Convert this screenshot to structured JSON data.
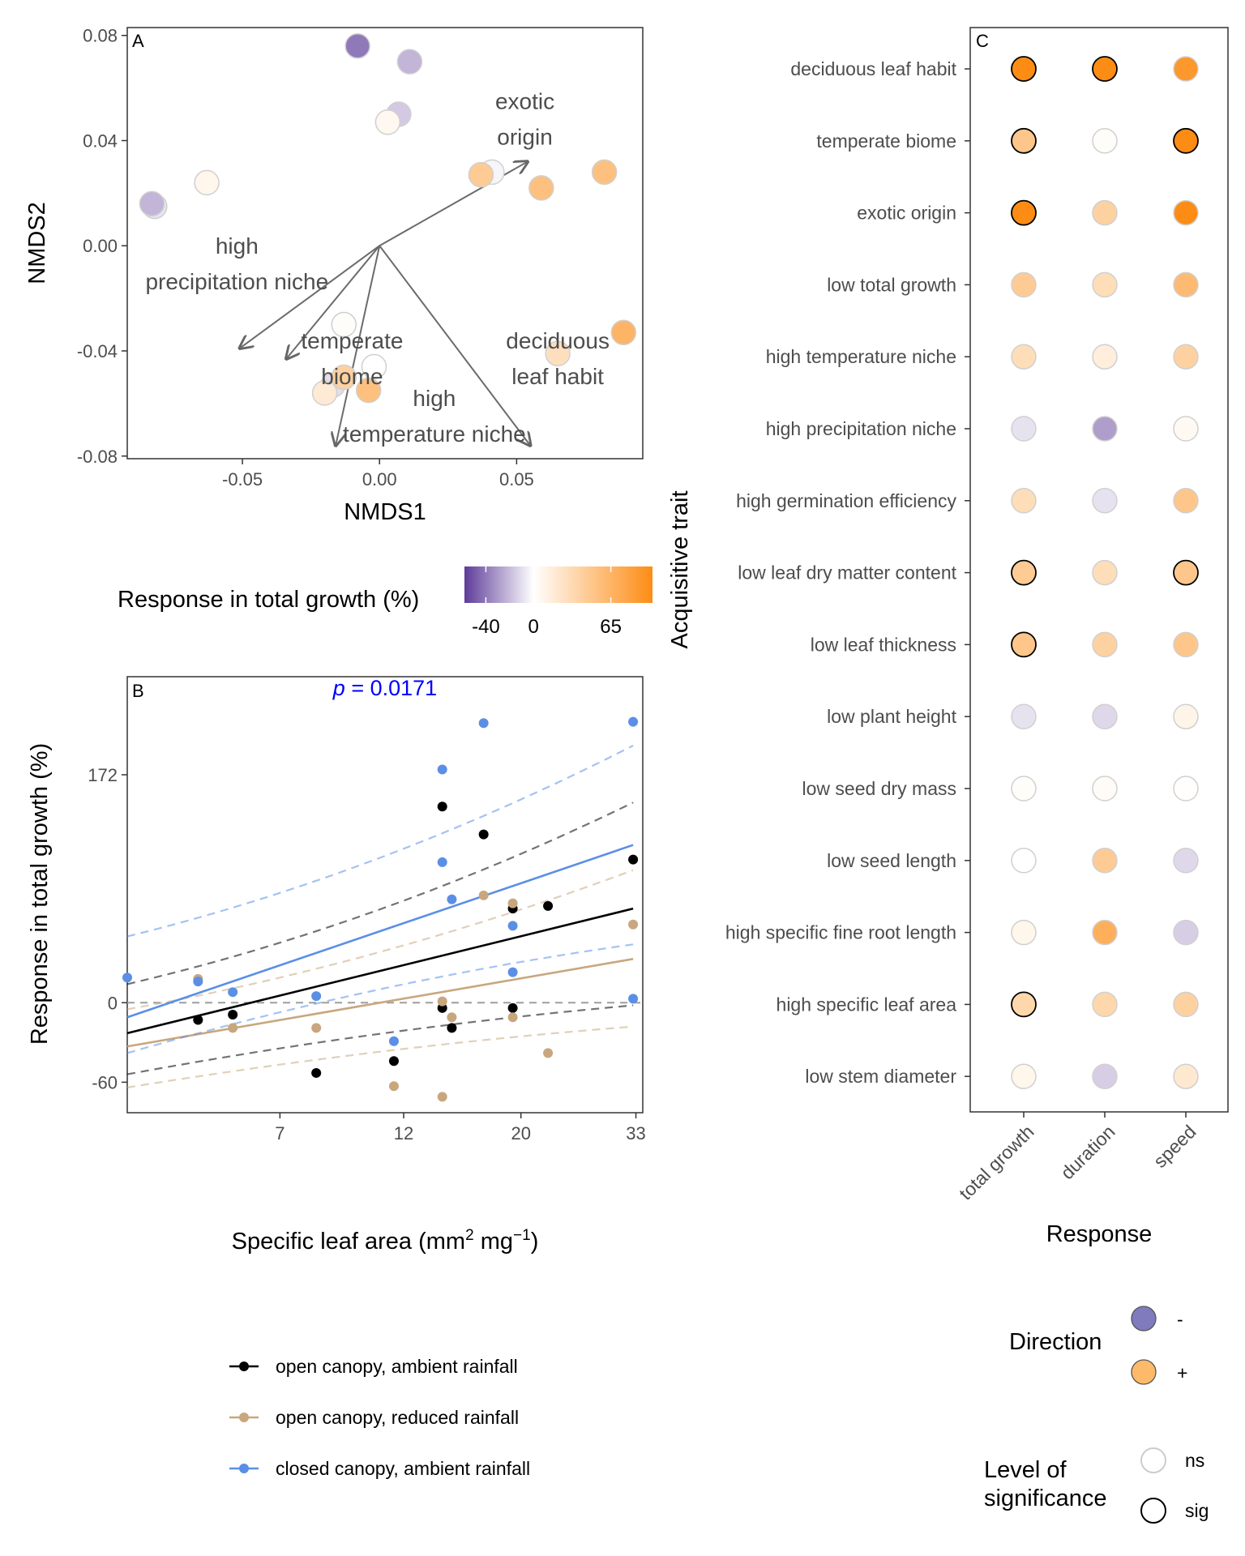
{
  "colors": {
    "negative": "#5e3c99",
    "neutral": "#ffffff",
    "positive": "#fd8c14",
    "line_black": "#000000",
    "line_tan": "#c8a77e",
    "line_blue": "#5b8fe6",
    "pvalue": "#0000ff"
  },
  "chart_data": [
    {
      "panel": "A",
      "type": "scatter",
      "panel_label": "A",
      "xlabel": "NMDS1",
      "ylabel": "NMDS2",
      "xlim": [
        -0.092,
        0.096
      ],
      "ylim": [
        -0.081,
        0.083
      ],
      "xticks": [
        -0.05,
        0.0,
        0.05
      ],
      "xtick_labels": [
        "-0.05",
        "0.00",
        "0.05"
      ],
      "yticks": [
        -0.08,
        -0.04,
        0.0,
        0.04,
        0.08
      ],
      "ytick_labels": [
        "-0.08",
        "-0.04",
        "0.00",
        "0.04",
        "0.08"
      ],
      "grid": false,
      "points": [
        {
          "x": -0.008,
          "y": 0.076,
          "response": -40
        },
        {
          "x": 0.011,
          "y": 0.07,
          "response": -22
        },
        {
          "x": 0.007,
          "y": 0.05,
          "response": -16
        },
        {
          "x": 0.003,
          "y": 0.047,
          "response": 6
        },
        {
          "x": 0.041,
          "y": 0.028,
          "response": -3
        },
        {
          "x": 0.037,
          "y": 0.027,
          "response": 45
        },
        {
          "x": 0.059,
          "y": 0.022,
          "response": 55
        },
        {
          "x": 0.082,
          "y": 0.028,
          "response": 55
        },
        {
          "x": -0.082,
          "y": 0.015,
          "response": -8
        },
        {
          "x": -0.083,
          "y": 0.016,
          "response": -22
        },
        {
          "x": -0.063,
          "y": 0.024,
          "response": 8
        },
        {
          "x": -0.013,
          "y": -0.03,
          "response": 2
        },
        {
          "x": -0.002,
          "y": -0.046,
          "response": 0
        },
        {
          "x": 0.065,
          "y": -0.041,
          "response": 28
        },
        {
          "x": 0.089,
          "y": -0.033,
          "response": 65
        },
        {
          "x": -0.017,
          "y": -0.053,
          "response": -10
        },
        {
          "x": -0.013,
          "y": -0.05,
          "response": 40
        },
        {
          "x": -0.02,
          "y": -0.056,
          "response": 18
        },
        {
          "x": -0.004,
          "y": -0.055,
          "response": 55
        }
      ],
      "vectors": [
        {
          "trait": "exotic origin",
          "lines": [
            "exotic",
            "origin"
          ],
          "x": 0.054,
          "y": 0.032,
          "label_x": 0.053,
          "label_y": 0.052
        },
        {
          "trait": "high precipitation niche",
          "lines": [
            "high",
            "precipitation niche"
          ],
          "x": -0.051,
          "y": -0.039,
          "label_x": -0.052,
          "label_y": -0.003
        },
        {
          "trait": "temperate biome",
          "lines": [
            "temperate",
            "biome"
          ],
          "x": -0.034,
          "y": -0.043,
          "label_x": -0.01,
          "label_y": -0.039
        },
        {
          "trait": "high temperature niche",
          "lines": [
            "high",
            "temperature niche"
          ],
          "x": -0.016,
          "y": -0.076,
          "label_x": 0.02,
          "label_y": -0.061
        },
        {
          "trait": "deciduous leaf habit",
          "lines": [
            "deciduous",
            "leaf habit"
          ],
          "x": 0.055,
          "y": -0.076,
          "label_x": 0.065,
          "label_y": -0.039
        }
      ]
    },
    {
      "panel": "legend",
      "type": "colorbar",
      "title": "Response in total growth (%)",
      "ticks": [
        -40,
        0,
        65
      ],
      "tick_labels": [
        "-40",
        "0",
        "65"
      ],
      "range": [
        -58,
        100
      ]
    },
    {
      "panel": "B",
      "type": "scatter",
      "panel_label": "B",
      "annotation": "p = 0.0171",
      "annotation_italic": "p",
      "annotation_rest": " = 0.0171",
      "xlabel": "Specific leaf area (mm² mg⁻¹)",
      "xlabel_parts": [
        "Specific leaf area (mm",
        "2",
        " mg",
        "−1",
        ")"
      ],
      "ylabel": "Response in total growth (%)",
      "x_scale": "log",
      "xlim": [
        3.6,
        34
      ],
      "ylim": [
        -83,
        246
      ],
      "x_is_shown_as": "value^(1/4) on log-ish axis",
      "xticks": [
        7,
        12,
        20,
        33
      ],
      "xtick_labels": [
        "7",
        "12",
        "20",
        "33"
      ],
      "yticks": [
        -60,
        0,
        172
      ],
      "ytick_labels": [
        "-60",
        "0",
        "172"
      ],
      "hline": 0,
      "grid": false,
      "legend_position": "bottom",
      "series": [
        {
          "name": "open canopy, ambient rainfall",
          "color_key": "line_black",
          "points": [
            [
              4.9,
              -13
            ],
            [
              5.7,
              -9
            ],
            [
              8.2,
              -53
            ],
            [
              11.5,
              -44
            ],
            [
              14.2,
              148
            ],
            [
              17.0,
              127
            ],
            [
              14.2,
              -4
            ],
            [
              14.8,
              -19
            ],
            [
              19.3,
              71
            ],
            [
              19.3,
              -4
            ],
            [
              22.5,
              73
            ],
            [
              32.6,
              108
            ]
          ],
          "fit": [
            [
              3.6,
              -23
            ],
            [
              32.6,
              71
            ]
          ],
          "ci_upper": [
            [
              3.6,
              14
            ],
            [
              32.6,
              151
            ]
          ],
          "ci_lower": [
            [
              3.6,
              -54
            ],
            [
              32.6,
              -2
            ]
          ]
        },
        {
          "name": "open canopy, reduced rainfall",
          "color_key": "line_tan",
          "points": [
            [
              4.9,
              18
            ],
            [
              5.7,
              -19
            ],
            [
              8.2,
              -19
            ],
            [
              11.5,
              -63
            ],
            [
              14.2,
              1
            ],
            [
              14.8,
              -11
            ],
            [
              17.0,
              81
            ],
            [
              19.3,
              75
            ],
            [
              19.3,
              -11
            ],
            [
              22.5,
              -38
            ],
            [
              14.2,
              -71
            ],
            [
              32.6,
              59
            ]
          ],
          "fit": [
            [
              3.6,
              -33
            ],
            [
              32.6,
              33
            ]
          ],
          "ci_upper": [
            [
              3.6,
              -5
            ],
            [
              32.6,
              100
            ]
          ],
          "ci_lower": [
            [
              3.6,
              -64
            ],
            [
              32.6,
              -18
            ]
          ]
        },
        {
          "name": "closed canopy, ambient rainfall",
          "color_key": "line_blue",
          "points": [
            [
              3.6,
              19
            ],
            [
              4.9,
              16
            ],
            [
              5.7,
              8
            ],
            [
              8.2,
              5
            ],
            [
              11.5,
              -29
            ],
            [
              14.2,
              176
            ],
            [
              14.2,
              106
            ],
            [
              14.8,
              78
            ],
            [
              17.0,
              211
            ],
            [
              19.3,
              58
            ],
            [
              19.3,
              23
            ],
            [
              32.6,
              212
            ],
            [
              32.6,
              3
            ]
          ],
          "fit": [
            [
              3.6,
              -11
            ],
            [
              32.6,
              119
            ]
          ],
          "ci_upper": [
            [
              3.6,
              50
            ],
            [
              32.6,
              194
            ]
          ],
          "ci_lower": [
            [
              3.6,
              -38
            ],
            [
              32.6,
              44
            ]
          ]
        }
      ]
    },
    {
      "panel": "C",
      "type": "heatmap",
      "panel_label": "C",
      "xlabel": "Response",
      "ylabel": "Acquisitive trait",
      "x_categories": [
        "total growth",
        "duration",
        "speed"
      ],
      "y_categories": [
        "deciduous leaf habit",
        "temperate biome",
        "exotic origin",
        "low total growth",
        "high temperature niche",
        "high precipitation niche",
        "high germination efficiency",
        "low leaf dry matter content",
        "low leaf thickness",
        "low plant height",
        "low seed dry mass",
        "low seed length",
        "high specific fine root length",
        "high specific leaf area",
        "low stem diameter"
      ],
      "values": [
        [
          1.0,
          1.0,
          0.9
        ],
        [
          0.5,
          0.02,
          1.0
        ],
        [
          1.0,
          0.4,
          1.0
        ],
        [
          0.45,
          0.3,
          0.6
        ],
        [
          0.3,
          0.15,
          0.4
        ],
        [
          -0.15,
          -0.5,
          0.05
        ],
        [
          0.3,
          -0.15,
          0.5
        ],
        [
          0.45,
          0.3,
          0.5
        ],
        [
          0.5,
          0.4,
          0.5
        ],
        [
          -0.15,
          -0.2,
          0.1
        ],
        [
          0.02,
          0.03,
          0.01
        ],
        [
          0.0,
          0.45,
          -0.2
        ],
        [
          0.08,
          0.7,
          -0.25
        ],
        [
          0.35,
          0.35,
          0.4
        ],
        [
          0.08,
          -0.25,
          0.2
        ]
      ],
      "significant": [
        [
          true,
          true,
          false
        ],
        [
          true,
          false,
          true
        ],
        [
          true,
          false,
          false
        ],
        [
          false,
          false,
          false
        ],
        [
          false,
          false,
          false
        ],
        [
          false,
          false,
          false
        ],
        [
          false,
          false,
          false
        ],
        [
          true,
          false,
          true
        ],
        [
          true,
          false,
          false
        ],
        [
          false,
          false,
          false
        ],
        [
          false,
          false,
          false
        ],
        [
          false,
          false,
          false
        ],
        [
          false,
          false,
          false
        ],
        [
          true,
          false,
          false
        ],
        [
          false,
          false,
          false
        ]
      ],
      "legend_direction_title": "Direction",
      "legend_direction_items": [
        {
          "label": "-",
          "color": "#7f7bbd"
        },
        {
          "label": "+",
          "color": "#fdba6b"
        }
      ],
      "legend_sig_title_lines": [
        "Level of",
        "significance"
      ],
      "legend_sig_items": [
        {
          "label": "ns",
          "stroke": "#cccccc"
        },
        {
          "label": "sig",
          "stroke": "#000000"
        }
      ]
    }
  ]
}
